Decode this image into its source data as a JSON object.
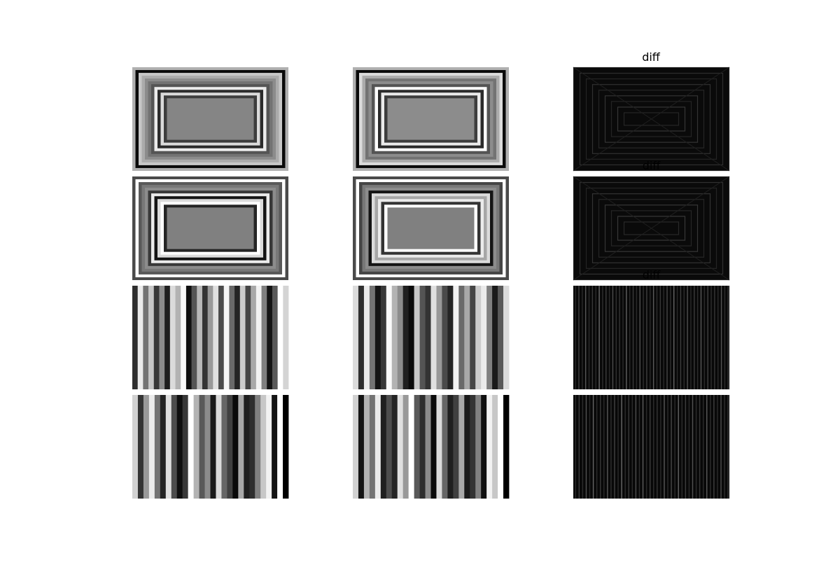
{
  "chart_data": {
    "type": "heatmap",
    "layout": {
      "rows": 4,
      "cols": 3
    },
    "colormap": "gray",
    "titles": [
      "diff",
      "diff",
      "diff"
    ],
    "panels": [
      {
        "name": "rect-a-1",
        "kind": "rect",
        "levels": [
          0.69,
          0.04,
          0.78,
          0.67,
          0.55,
          0.45,
          0.33,
          0.92,
          0.17,
          0.86,
          0.24,
          0.52
        ],
        "labels": []
      },
      {
        "name": "rect-b-1",
        "kind": "rect",
        "levels": [
          0.69,
          0.04,
          0.86,
          0.67,
          0.45,
          0.55,
          0.33,
          1.0,
          0.17,
          0.92,
          0.24,
          0.55
        ],
        "labels": []
      },
      {
        "name": "diff-1",
        "kind": "rect-diff",
        "levels": [
          0.03,
          0.08,
          0.04,
          0.09,
          0.05,
          0.1,
          0.04,
          0.11,
          0.05,
          0.12,
          0.05,
          0.06
        ],
        "labels": []
      },
      {
        "name": "rect-a-2",
        "kind": "rect",
        "levels": [
          0.29,
          1.0,
          0.35,
          0.47,
          0.55,
          0.22,
          0.92,
          0.08,
          0.86,
          1.0,
          0.14,
          0.5
        ],
        "labels": []
      },
      {
        "name": "rect-b-2",
        "kind": "rect",
        "levels": [
          0.29,
          1.0,
          0.27,
          0.47,
          0.55,
          0.08,
          0.86,
          0.65,
          0.92,
          0.2,
          1.0,
          0.5
        ],
        "labels": []
      },
      {
        "name": "diff-2",
        "kind": "rect-diff",
        "levels": [
          0.03,
          0.09,
          0.04,
          0.1,
          0.05,
          0.11,
          0.05,
          0.12,
          0.06,
          0.13,
          0.05,
          0.06
        ],
        "labels": [
          "diff"
        ]
      },
      {
        "name": "stripes-a-1",
        "kind": "stripes",
        "levels": [
          0.18,
          0.92,
          0.45,
          0.78,
          0.22,
          0.55,
          0.12,
          0.86,
          0.7,
          0.98,
          0.06,
          0.33,
          0.72,
          0.2,
          0.6,
          0.88,
          0.29,
          0.96,
          0.41,
          0.14,
          0.8,
          0.27,
          0.66,
          0.95,
          0.5,
          0.08,
          0.35,
          1.0,
          0.83
        ],
        "labels": []
      },
      {
        "name": "stripes-b-1",
        "kind": "stripes",
        "levels": [
          0.86,
          0.18,
          0.92,
          0.45,
          0.08,
          0.22,
          0.98,
          0.7,
          0.55,
          0.12,
          0.04,
          0.78,
          0.33,
          0.2,
          0.88,
          0.6,
          0.29,
          0.14,
          0.95,
          0.41,
          0.66,
          0.27,
          0.8,
          0.92,
          0.5,
          0.1,
          0.35,
          0.86
        ],
        "labels": []
      },
      {
        "name": "diff-3",
        "kind": "stripes-diff",
        "levels": [
          0.04,
          0.14,
          0.05,
          0.22,
          0.06,
          0.1,
          0.05,
          0.3,
          0.06,
          0.12,
          0.05,
          0.18,
          0.07,
          0.09,
          0.05,
          0.26,
          0.06,
          0.11,
          0.05,
          0.2,
          0.06,
          0.13,
          0.05,
          0.24,
          0.07,
          0.1,
          0.05,
          0.16,
          0.06,
          0.28,
          0.05,
          0.12,
          0.06,
          0.19,
          0.05,
          0.11,
          0.06,
          0.23,
          0.05,
          0.14,
          0.06,
          0.09,
          0.05,
          0.21,
          0.06,
          0.12
        ],
        "labels": [
          "diff"
        ]
      },
      {
        "name": "stripes-a-2",
        "kind": "stripes",
        "levels": [
          0.82,
          0.2,
          0.6,
          0.92,
          0.45,
          0.14,
          0.88,
          0.3,
          0.06,
          0.22,
          1.0,
          0.7,
          0.35,
          0.55,
          0.1,
          0.86,
          0.4,
          0.25,
          0.04,
          0.66,
          0.12,
          0.18,
          0.5,
          0.78,
          0.95,
          0.08,
          1.0,
          0.0
        ],
        "labels": []
      },
      {
        "name": "stripes-b-2",
        "kind": "stripes",
        "levels": [
          0.82,
          0.08,
          0.7,
          0.45,
          0.92,
          0.12,
          0.3,
          0.14,
          0.88,
          0.6,
          1.0,
          0.35,
          0.18,
          0.55,
          0.04,
          0.86,
          0.4,
          0.12,
          0.25,
          0.66,
          0.1,
          0.2,
          0.5,
          0.06,
          0.95,
          0.78,
          1.0,
          0.0
        ],
        "labels": []
      },
      {
        "name": "diff-4",
        "kind": "stripes-diff",
        "levels": [
          0.05,
          0.12,
          0.06,
          0.2,
          0.05,
          0.28,
          0.06,
          0.1,
          0.05,
          0.22,
          0.07,
          0.14,
          0.05,
          0.3,
          0.06,
          0.11,
          0.05,
          0.19,
          0.06,
          0.25,
          0.05,
          0.13,
          0.06,
          0.09,
          0.05,
          0.23,
          0.06,
          0.16,
          0.05,
          0.27,
          0.06,
          0.12,
          0.05,
          0.2,
          0.06,
          0.1,
          0.05,
          0.24,
          0.06,
          0.14,
          0.05,
          0.18,
          0.06,
          0.11
        ],
        "labels": []
      }
    ]
  }
}
